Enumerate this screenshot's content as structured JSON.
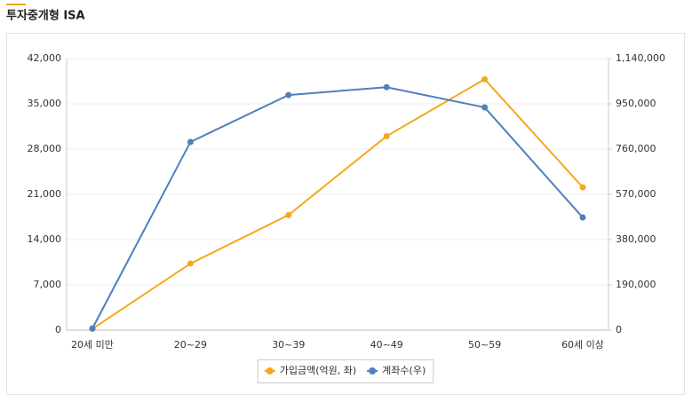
{
  "chart_data": {
    "type": "line",
    "title": "투자중개형 ISA",
    "categories": [
      "20세 미만",
      "20~29",
      "30~39",
      "40~49",
      "50~59",
      "60세 이상"
    ],
    "series": [
      {
        "name": "가입금액(억원, 좌)",
        "color": "#f4a81d",
        "values": [
          200,
          10300,
          17800,
          30000,
          38800,
          22100
        ]
      },
      {
        "name": "계좌수(우)",
        "color": "#4f7fbd",
        "axis": "y2",
        "values": [
          7000,
          790000,
          987000,
          1020000,
          935000,
          473000
        ]
      }
    ],
    "ylim": [
      0,
      42000
    ],
    "yticks": [
      0,
      {
        "value": 7000,
        "label": "7,000"
      },
      {
        "value": 14000,
        "label": "14,000"
      },
      {
        "value": 21000,
        "label": "21,000"
      },
      {
        "value": 28000,
        "label": "28,000"
      },
      {
        "value": 35000,
        "label": "35,000"
      },
      {
        "value": 42000,
        "label": "42,000"
      }
    ],
    "y2lim": [
      0,
      1140000
    ],
    "y2ticks": [
      0,
      {
        "value": 190000,
        "label": "190,000"
      },
      {
        "value": 380000,
        "label": "380,000"
      },
      {
        "value": 570000,
        "label": "570,000"
      },
      {
        "value": 760000,
        "label": "760,000"
      },
      {
        "value": 950000,
        "label": "950,000"
      },
      {
        "value": 1140000,
        "label": "1,140,000"
      }
    ],
    "grid": true,
    "legend": "bottom"
  }
}
